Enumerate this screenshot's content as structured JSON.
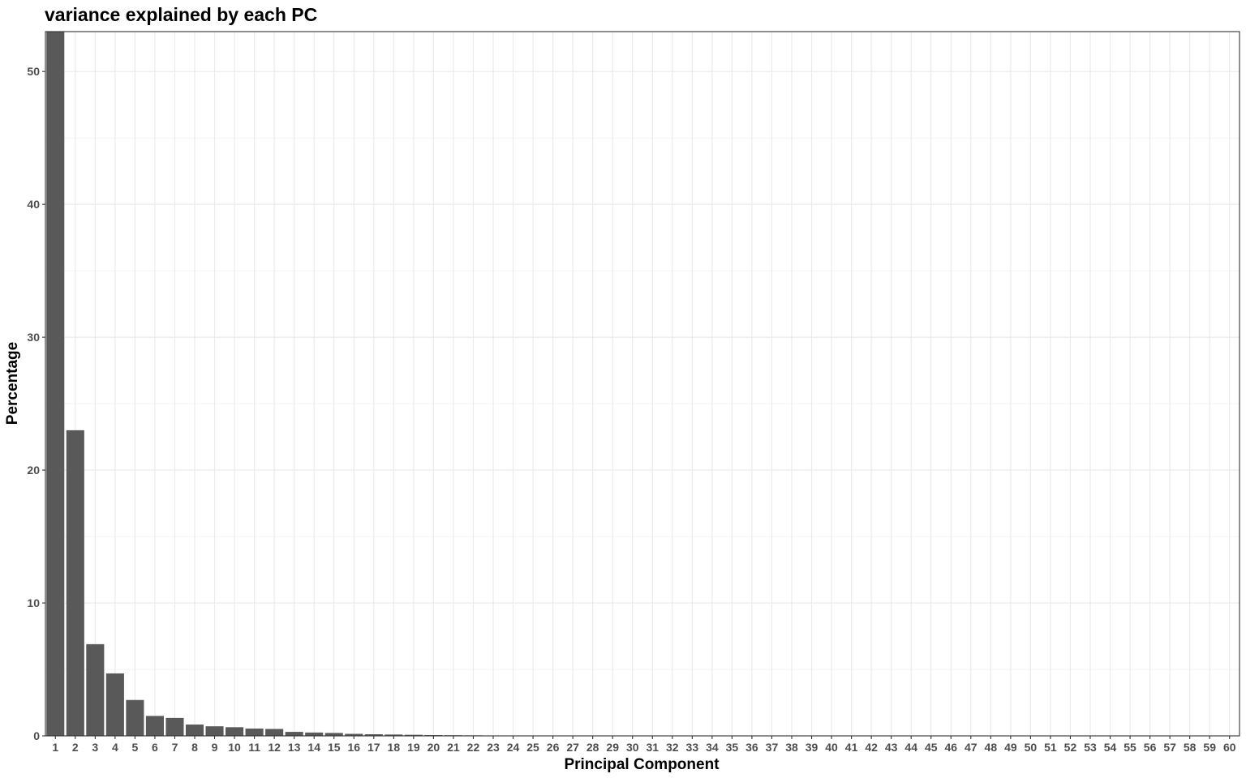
{
  "chart_data": {
    "type": "bar",
    "title": "variance explained by each PC",
    "xlabel": "Principal Component",
    "ylabel": "Percentage",
    "categories": [
      "1",
      "2",
      "3",
      "4",
      "5",
      "6",
      "7",
      "8",
      "9",
      "10",
      "11",
      "12",
      "13",
      "14",
      "15",
      "16",
      "17",
      "18",
      "19",
      "20",
      "21",
      "22",
      "23",
      "24",
      "25",
      "26",
      "27",
      "28",
      "29",
      "30",
      "31",
      "32",
      "33",
      "34",
      "35",
      "36",
      "37",
      "38",
      "39",
      "40",
      "41",
      "42",
      "43",
      "44",
      "45",
      "46",
      "47",
      "48",
      "49",
      "50",
      "51",
      "52",
      "53",
      "54",
      "55",
      "56",
      "57",
      "58",
      "59",
      "60"
    ],
    "values": [
      53.0,
      23.0,
      6.9,
      4.7,
      2.7,
      1.5,
      1.35,
      0.85,
      0.72,
      0.65,
      0.55,
      0.52,
      0.3,
      0.25,
      0.22,
      0.15,
      0.12,
      0.1,
      0.08,
      0.06,
      0.05,
      0.04,
      0.03,
      0.02,
      0.02,
      0,
      0,
      0,
      0,
      0,
      0,
      0,
      0,
      0,
      0,
      0,
      0,
      0,
      0,
      0,
      0,
      0,
      0,
      0,
      0,
      0,
      0,
      0,
      0,
      0,
      0,
      0,
      0,
      0,
      0,
      0,
      0,
      0,
      0,
      0
    ],
    "yticks": [
      0,
      10,
      20,
      30,
      40,
      50
    ],
    "ylim": [
      0,
      53
    ],
    "grid": true,
    "bar_color": "#595959",
    "grid_color": "#ebebeb",
    "panel_border_color": "#333333"
  }
}
